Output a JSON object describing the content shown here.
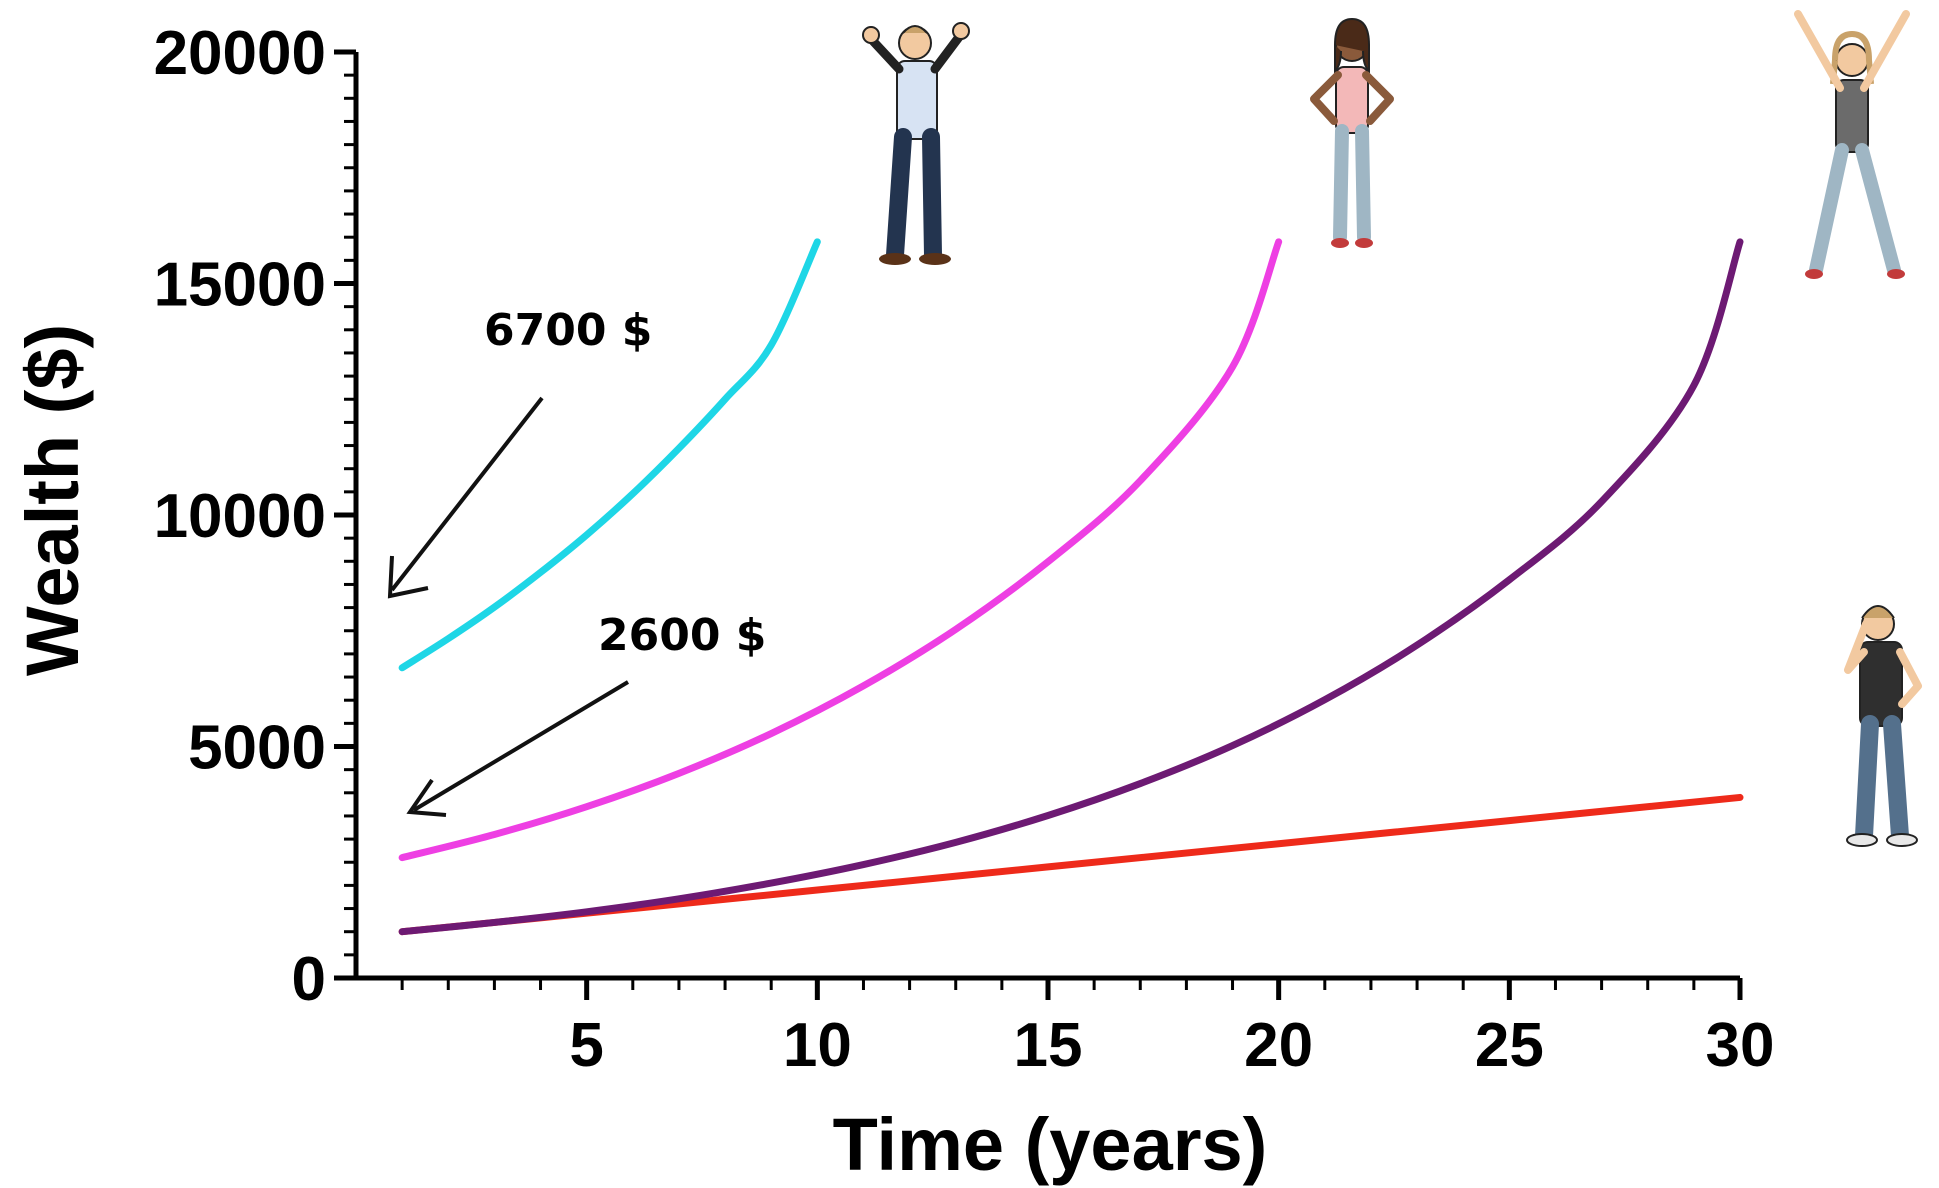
{
  "chart_data": {
    "type": "line",
    "title": "",
    "xlabel": "Time (years)",
    "ylabel": "Wealth ($)",
    "xlim": [
      0,
      30
    ],
    "ylim": [
      0,
      20000
    ],
    "x_ticks": [
      5,
      10,
      15,
      20,
      25,
      30
    ],
    "y_ticks": [
      0,
      5000,
      10000,
      15000,
      20000
    ],
    "grid": false,
    "legend": "none",
    "series": [
      {
        "color": "#1ed6e6",
        "x": [
          1,
          2,
          3,
          4,
          5,
          6,
          7,
          8,
          9,
          10
        ],
        "y": [
          6700,
          7330,
          8010,
          8760,
          9570,
          10460,
          11440,
          12500,
          13670,
          15900
        ]
      },
      {
        "color": "#ee3fe3",
        "x": [
          1,
          3,
          5,
          7,
          9,
          11,
          13,
          15,
          17,
          19,
          20
        ],
        "y": [
          2600,
          3100,
          3700,
          4420,
          5280,
          6310,
          7530,
          8990,
          10740,
          13200,
          15900
        ]
      },
      {
        "color": "#6d1a73",
        "x": [
          1,
          3,
          5,
          7,
          9,
          11,
          13,
          15,
          17,
          19,
          21,
          23,
          25,
          27,
          29,
          30
        ],
        "y": [
          1000,
          1200,
          1430,
          1710,
          2050,
          2450,
          2930,
          3510,
          4200,
          5020,
          6010,
          7190,
          8600,
          10290,
          12800,
          15900
        ]
      },
      {
        "color": "#ee2a1a",
        "x": [
          1,
          5,
          10,
          15,
          20,
          25,
          30
        ],
        "y": [
          1000,
          1400,
          1900,
          2400,
          2900,
          3400,
          3900
        ]
      }
    ],
    "annotations": [
      {
        "text": "6700 $",
        "points_to": {
          "x": 1,
          "y": 6700
        }
      },
      {
        "text": "2600 $",
        "points_to": {
          "x": 1,
          "y": 2600
        }
      }
    ]
  },
  "illustrations": [
    {
      "name": "man-celebrating-icon",
      "near_x": 10
    },
    {
      "name": "woman-hands-on-hips-icon",
      "near_x": 20
    },
    {
      "name": "woman-jumping-icon",
      "near_x": 30
    },
    {
      "name": "man-worried-icon",
      "near_x": 30
    }
  ]
}
